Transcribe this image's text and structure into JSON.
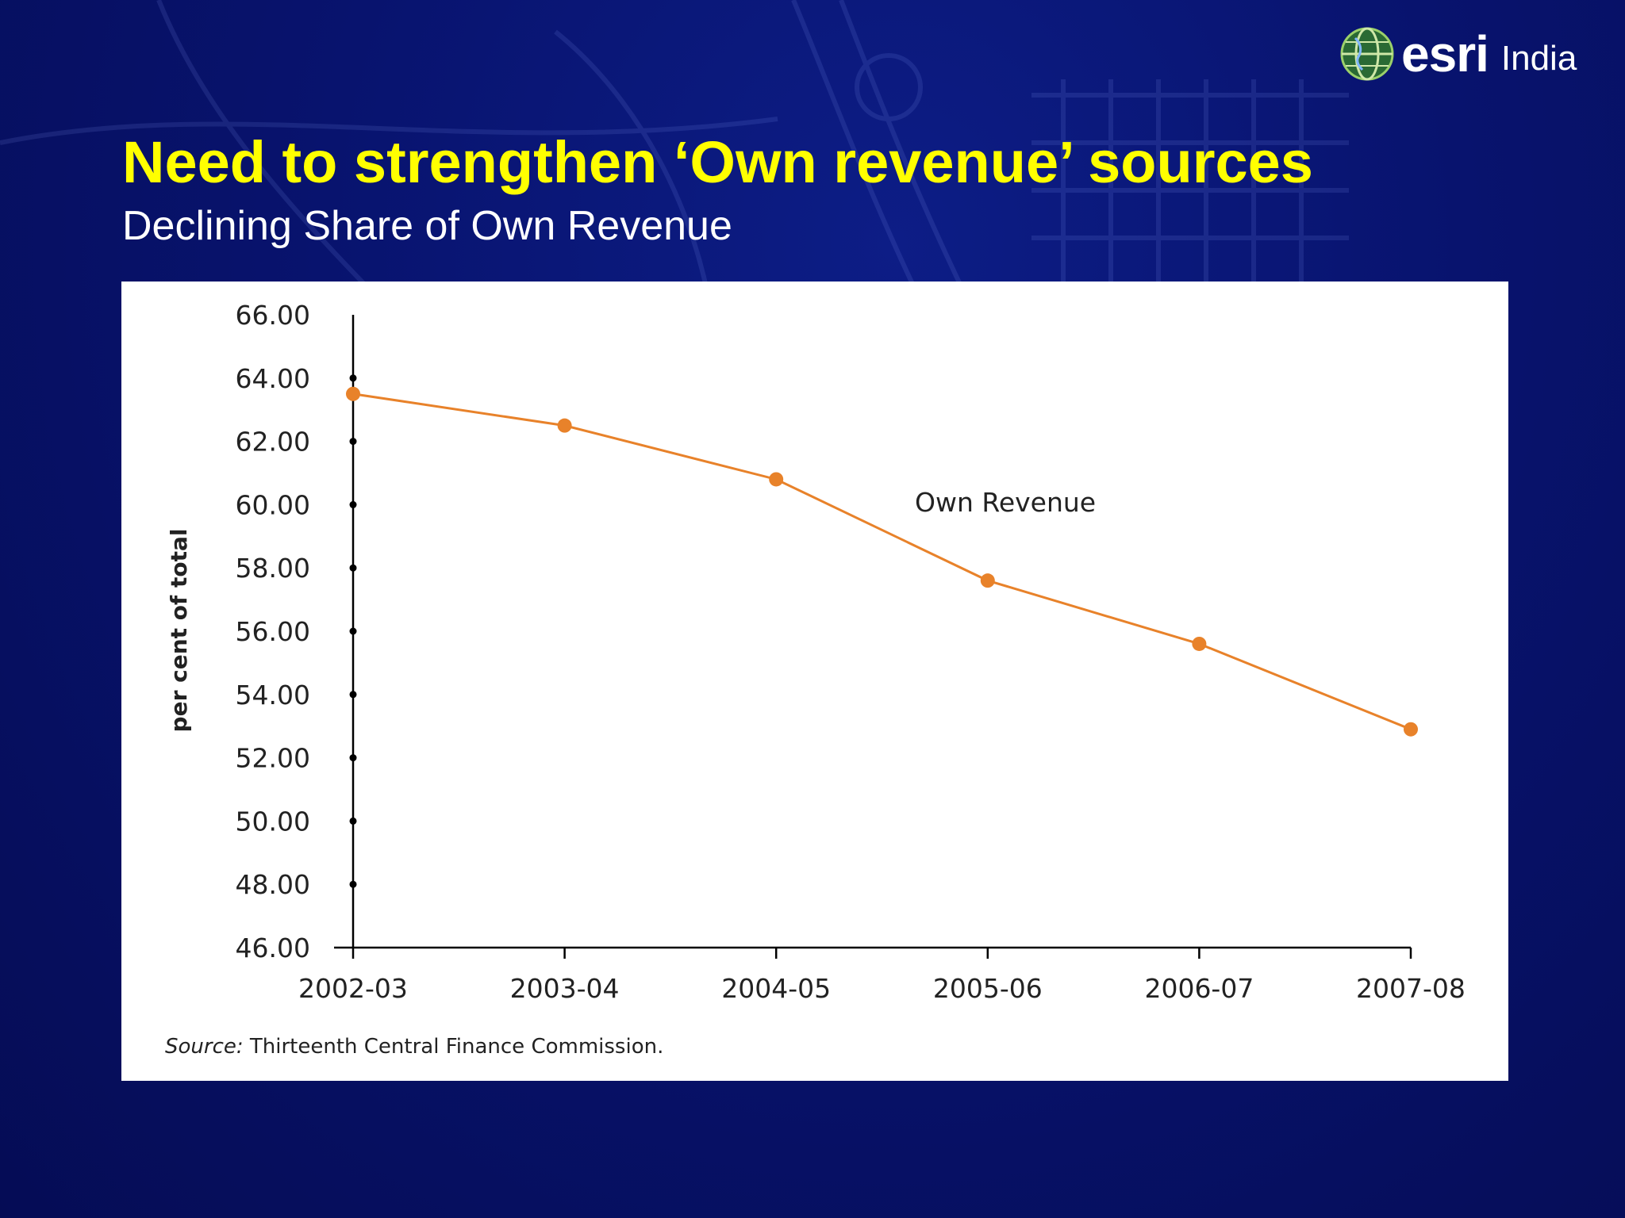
{
  "slide": {
    "title": "Need to strengthen ‘Own revenue’ sources",
    "subtitle": "Declining Share of Own Revenue"
  },
  "logo": {
    "text": "esri",
    "region": "India",
    "icon": "globe-icon"
  },
  "source": {
    "label": "Source:",
    "text": " Thirteenth Central Finance Commission."
  },
  "colors": {
    "background": "#08136e",
    "title": "#ffff00",
    "series": "#e8822a",
    "axis": "#000000"
  },
  "chart_data": {
    "type": "line",
    "title": "",
    "xlabel": "",
    "ylabel": "per cent of total",
    "categories": [
      "2002-03",
      "2003-04",
      "2004-05",
      "2005-06",
      "2006-07",
      "2007-08"
    ],
    "series": [
      {
        "name": "Own Revenue",
        "values": [
          63.5,
          62.5,
          60.8,
          57.6,
          55.6,
          52.9
        ],
        "color": "#e8822a"
      }
    ],
    "yticks": [
      "66.00",
      "64.00",
      "62.00",
      "60.00",
      "58.00",
      "56.00",
      "54.00",
      "52.00",
      "50.00",
      "48.00",
      "46.00"
    ],
    "ylim": [
      46,
      66
    ],
    "grid": false,
    "legend": "inline label"
  }
}
